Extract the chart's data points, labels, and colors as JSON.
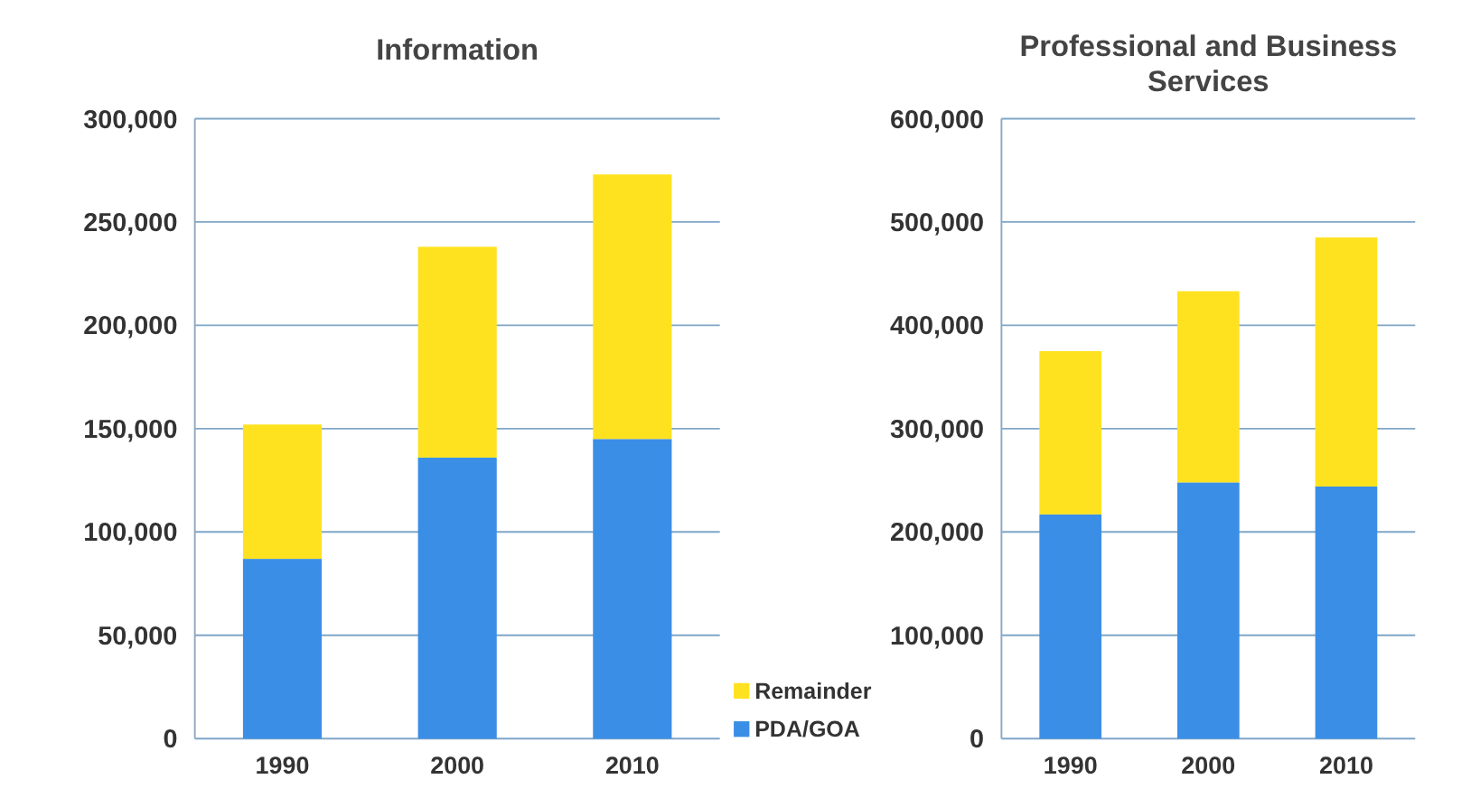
{
  "chart_data": [
    {
      "type": "bar",
      "title": "Information",
      "categories": [
        "1990",
        "2000",
        "2010"
      ],
      "stacked": true,
      "ylim": [
        0,
        300000
      ],
      "yticks": [
        {
          "value": 0,
          "label": "0"
        },
        {
          "value": 50000,
          "label": "50,000"
        },
        {
          "value": 100000,
          "label": "100,000"
        },
        {
          "value": 150000,
          "label": "150,000"
        },
        {
          "value": 200000,
          "label": "200,000"
        },
        {
          "value": 250000,
          "label": "250,000"
        },
        {
          "value": 300000,
          "label": "300,000"
        }
      ],
      "grid": "y",
      "legend": "bottom right",
      "series": [
        {
          "name": "PDA/GOA",
          "color": "#3a8ee6",
          "values": [
            87000,
            136000,
            145000
          ]
        },
        {
          "name": "Remainder",
          "color": "#ffe21f",
          "values": [
            65000,
            102000,
            128000
          ]
        }
      ]
    },
    {
      "type": "bar",
      "title": "Professional and Business Services",
      "categories": [
        "1990",
        "2000",
        "2010"
      ],
      "stacked": true,
      "ylim": [
        0,
        600000
      ],
      "yticks": [
        {
          "value": 0,
          "label": "0"
        },
        {
          "value": 100000,
          "label": "100,000"
        },
        {
          "value": 200000,
          "label": "200,000"
        },
        {
          "value": 300000,
          "label": "300,000"
        },
        {
          "value": 400000,
          "label": "400,000"
        },
        {
          "value": 500000,
          "label": "500,000"
        },
        {
          "value": 600000,
          "label": "600,000"
        }
      ],
      "grid": "y",
      "series": [
        {
          "color": "#3a8ee6",
          "values": [
            217000,
            248000,
            244000
          ]
        },
        {
          "color": "#ffe21f",
          "values": [
            158000,
            185000,
            241000
          ]
        }
      ]
    }
  ]
}
